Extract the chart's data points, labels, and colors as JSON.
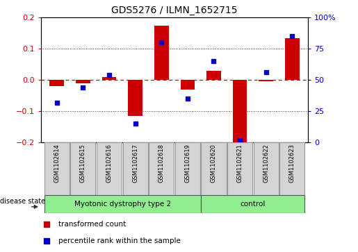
{
  "title": "GDS5276 / ILMN_1652715",
  "samples": [
    "GSM1102614",
    "GSM1102615",
    "GSM1102616",
    "GSM1102617",
    "GSM1102618",
    "GSM1102619",
    "GSM1102620",
    "GSM1102621",
    "GSM1102622",
    "GSM1102623"
  ],
  "transformed_count": [
    -0.02,
    -0.01,
    0.01,
    -0.115,
    0.175,
    -0.03,
    0.03,
    -0.2,
    -0.005,
    0.135
  ],
  "percentile_rank": [
    32,
    44,
    54,
    15,
    80,
    35,
    65,
    2,
    56,
    85
  ],
  "group1_label": "Myotonic dystrophy type 2",
  "group1_count": 6,
  "group2_label": "control",
  "group2_count": 4,
  "ylim_left": [
    -0.2,
    0.2
  ],
  "ylim_right": [
    0,
    100
  ],
  "yticks_left": [
    -0.2,
    -0.1,
    0.0,
    0.1,
    0.2
  ],
  "yticks_right": [
    0,
    25,
    50,
    75,
    100
  ],
  "bar_color": "#CC0000",
  "dot_color": "#0000CC",
  "zero_line_color": "#CC0000",
  "grid_color": "#444444",
  "label_box_color": "#D4D4D4",
  "group_color": "#90EE90",
  "bg_color": "#FFFFFF",
  "legend_red_label": "transformed count",
  "legend_blue_label": "percentile rank within the sample",
  "disease_state_label": "disease state"
}
